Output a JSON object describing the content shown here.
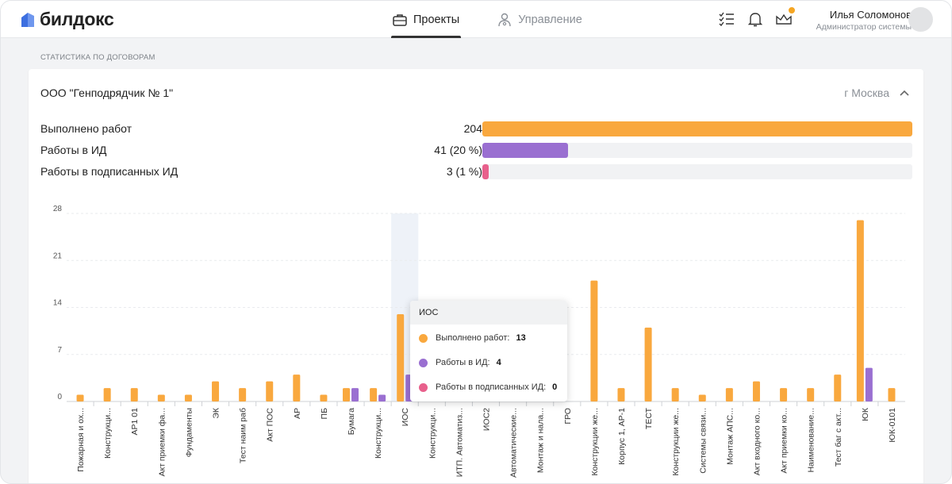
{
  "brand": {
    "name": "билдокс",
    "color": "#3d6fe0"
  },
  "nav": [
    {
      "label": "Проекты",
      "icon": "briefcase-icon",
      "active": true
    },
    {
      "label": "Управление",
      "icon": "user-gear-icon",
      "active": false
    }
  ],
  "header_icons": [
    "checklist-icon",
    "bell-icon",
    "crown-icon"
  ],
  "user": {
    "name": "Илья Соломонов",
    "role": "Администратор системы"
  },
  "section_title": "СТАТИСТИКА ПО ДОГОВОРАМ",
  "card": {
    "company": "ООО \"Генподрядчик № 1\"",
    "city": "г Москва"
  },
  "stats": [
    {
      "label": "Выполнено работ",
      "value": "204",
      "fraction": 1.0,
      "color": "#f9a83e"
    },
    {
      "label": "Работы в ИД",
      "value": "41 (20 %)",
      "fraction": 0.2,
      "color": "#9a6fd1"
    },
    {
      "label": "Работы в подписанных ИД",
      "value": "3 (1 %)",
      "fraction": 0.015,
      "color": "#e8608c"
    }
  ],
  "tooltip": {
    "title": "ИОС",
    "rows": [
      {
        "label": "Выполнено работ:",
        "value": "13",
        "color": "#f9a83e"
      },
      {
        "label": "Работы в ИД:",
        "value": "4",
        "color": "#9a6fd1"
      },
      {
        "label": "Работы в подписанных ИД:",
        "value": "0",
        "color": "#e8608c"
      }
    ]
  },
  "chart_data": {
    "type": "bar",
    "title": "",
    "xlabel": "",
    "ylabel": "",
    "ylim": [
      0,
      28
    ],
    "yticks": [
      0,
      7,
      14,
      21,
      28
    ],
    "highlight_category": "ИОС",
    "categories": [
      "Пожарная и ох...",
      "Конструкци...",
      "АР1 01",
      "Акт приемки фа...",
      "Фундаменты",
      "ЭК",
      "Тест наим раб",
      "Акт ПОС",
      "АР",
      "ПБ",
      "Бумага",
      "Конструкци...",
      "ИОС",
      "Конструкци...",
      "ИТП. Автоматиз...",
      "ИОС2",
      "Автоматические...",
      "Монтаж и нала...",
      "ГРО",
      "Конструкции же...",
      "Корпус 1, АР-1",
      "ТЕСТ",
      "Конструкции же...",
      "Системы связи...",
      "Монтаж АПС...",
      "Акт входного ко...",
      "Акт приемки ко...",
      "Наименование...",
      "Тест баг с акт...",
      "ЮК",
      "ЮК-0101"
    ],
    "series": [
      {
        "name": "Выполнено работ",
        "color": "#f9a83e",
        "values": [
          1,
          2,
          2,
          1,
          1,
          3,
          2,
          3,
          4,
          1,
          2,
          2,
          13,
          0,
          0,
          0,
          0,
          0,
          0,
          18,
          2,
          11,
          2,
          1,
          2,
          3,
          2,
          2,
          4,
          27,
          2
        ]
      },
      {
        "name": "Работы в ИД",
        "color": "#9a6fd1",
        "values": [
          0,
          0,
          0,
          0,
          0,
          0,
          0,
          0,
          0,
          0,
          2,
          1,
          4,
          0,
          0,
          0,
          0,
          0,
          0,
          0,
          0,
          0,
          0,
          0,
          0,
          0,
          0,
          0,
          0,
          5,
          0
        ]
      },
      {
        "name": "Работы в подписанных ИД",
        "color": "#e8608c",
        "values": [
          0,
          0,
          0,
          0,
          0,
          0,
          0,
          0,
          0,
          0,
          0,
          0,
          0,
          0,
          0,
          0,
          0,
          0,
          0,
          0,
          0,
          0,
          0,
          0,
          0,
          0,
          0,
          0,
          0,
          0,
          0
        ]
      }
    ]
  }
}
